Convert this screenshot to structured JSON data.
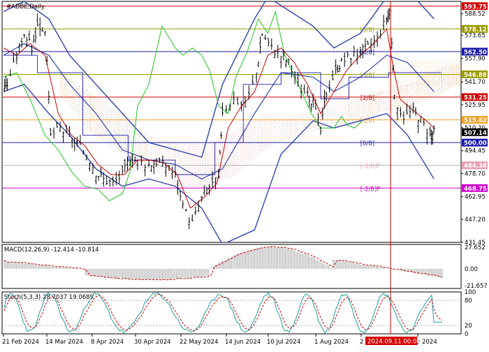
{
  "symbol_title": "#ADBE,Daily",
  "colors": {
    "price_bar": "#000000",
    "bollinger": "#2f45b0",
    "ichimoku_green": "#22c322",
    "ma_red": "#c80000",
    "cloud_brown": "#c89060",
    "cloud_pink": "#e8a0a0",
    "level_red": "#cc0000",
    "level_blue": "#1a1aa8",
    "level_olive": "#9a9a00",
    "level_orange": "#f0a030",
    "level_magenta": "#cc00cc",
    "level_gray": "#b0b0b0",
    "vline_red": "#d40000",
    "macd_hist": "#a8a8a8",
    "macd_signal": "#c80000",
    "stoch_main": "#1f9e9e",
    "stoch_signal": "#c80000"
  },
  "murray_labels": [
    {
      "text": "[5/8]",
      "color": "#9a9a00"
    },
    {
      "text": "[4/8]",
      "color": "#1a1aa8"
    },
    {
      "text": "[3/8]",
      "color": "#9a9a00"
    },
    {
      "text": "[2/8]",
      "color": "#cc0000"
    },
    {
      "text": "[1/8]",
      "color": "#f0a030"
    },
    {
      "text": "[0/8]",
      "color": "#1a1aa8"
    },
    {
      "text": "[-1/8]P",
      "color": "#e8a0b0"
    },
    {
      "text": "[-2/8]P",
      "color": "#cc00cc"
    }
  ],
  "price_tags": [
    {
      "text": "593.75",
      "bg": "#cc0000",
      "fg": "#ffffff"
    },
    {
      "text": "578.12",
      "bg": "#9a9a00",
      "fg": "#ffffff"
    },
    {
      "text": "562.50",
      "bg": "#1a1aa8",
      "fg": "#ffffff"
    },
    {
      "text": "546.88",
      "bg": "#9a9a00",
      "fg": "#ffffff"
    },
    {
      "text": "531.25",
      "bg": "#cc0000",
      "fg": "#ffffff"
    },
    {
      "text": "515.62",
      "bg": "#f0a030",
      "fg": "#ffffff"
    },
    {
      "text": "507.14",
      "bg": "#000000",
      "fg": "#ffffff"
    },
    {
      "text": "500.00",
      "bg": "#1a1aa8",
      "fg": "#ffffff"
    },
    {
      "text": "484.38",
      "bg": "#e8a0b0",
      "fg": "#ffffff"
    },
    {
      "text": "468.75",
      "bg": "#cc00cc",
      "fg": "#ffffff"
    }
  ],
  "crosshair_label": "2024.09.11 00:00",
  "macd_title": "MACD(12,26,9) -12.414 -10.814",
  "stoch_title": "Stoch(5,3,3) 28.7037 19.0689",
  "chart_data": [
    {
      "type": "bar",
      "title": "#ADBE,Daily",
      "y_ticks": [
        "588.52",
        "573.65",
        "557.90",
        "541.70",
        "525.95",
        "510.20",
        "494.45",
        "478.70",
        "462.95",
        "447.20",
        "431.45"
      ],
      "ylim": [
        431.45,
        597.0
      ],
      "x_ticks": [
        "21 Feb 2024",
        "14 Mar 2024",
        "8 Apr 2024",
        "30 Apr 2024",
        "22 May 2024",
        "14 Jun 2024",
        "10 Jul 2024",
        "1 Aug 2024",
        "2",
        "p 2024"
      ],
      "levels": [
        593.75,
        578.12,
        562.5,
        546.88,
        531.25,
        515.62,
        500.0,
        484.38,
        468.75
      ],
      "last_price": 507.14,
      "close_series": [
        {
          "date": "2024-02-21",
          "value": 540
        },
        {
          "date": "2024-02-26",
          "value": 560
        },
        {
          "date": "2024-03-01",
          "value": 575
        },
        {
          "date": "2024-03-05",
          "value": 565
        },
        {
          "date": "2024-03-08",
          "value": 580
        },
        {
          "date": "2024-03-12",
          "value": 578
        },
        {
          "date": "2024-03-15",
          "value": 505
        },
        {
          "date": "2024-03-20",
          "value": 510
        },
        {
          "date": "2024-03-25",
          "value": 503
        },
        {
          "date": "2024-03-29",
          "value": 498
        },
        {
          "date": "2024-04-03",
          "value": 492
        },
        {
          "date": "2024-04-08",
          "value": 480
        },
        {
          "date": "2024-04-12",
          "value": 475
        },
        {
          "date": "2024-04-17",
          "value": 472
        },
        {
          "date": "2024-04-22",
          "value": 478
        },
        {
          "date": "2024-04-26",
          "value": 490
        },
        {
          "date": "2024-04-30",
          "value": 487
        },
        {
          "date": "2024-05-06",
          "value": 485
        },
        {
          "date": "2024-05-10",
          "value": 487
        },
        {
          "date": "2024-05-15",
          "value": 484
        },
        {
          "date": "2024-05-20",
          "value": 478
        },
        {
          "date": "2024-05-24",
          "value": 455
        },
        {
          "date": "2024-05-29",
          "value": 445
        },
        {
          "date": "2024-06-03",
          "value": 462
        },
        {
          "date": "2024-06-07",
          "value": 470
        },
        {
          "date": "2024-06-12",
          "value": 475
        },
        {
          "date": "2024-06-14",
          "value": 522
        },
        {
          "date": "2024-06-20",
          "value": 530
        },
        {
          "date": "2024-06-26",
          "value": 525
        },
        {
          "date": "2024-07-02",
          "value": 548
        },
        {
          "date": "2024-07-05",
          "value": 575
        },
        {
          "date": "2024-07-10",
          "value": 565
        },
        {
          "date": "2024-07-15",
          "value": 560
        },
        {
          "date": "2024-07-19",
          "value": 555
        },
        {
          "date": "2024-07-24",
          "value": 540
        },
        {
          "date": "2024-07-29",
          "value": 532
        },
        {
          "date": "2024-08-01",
          "value": 528
        },
        {
          "date": "2024-08-05",
          "value": 508
        },
        {
          "date": "2024-08-08",
          "value": 535
        },
        {
          "date": "2024-08-13",
          "value": 550
        },
        {
          "date": "2024-08-16",
          "value": 555
        },
        {
          "date": "2024-08-21",
          "value": 560
        },
        {
          "date": "2024-08-26",
          "value": 562
        },
        {
          "date": "2024-08-30",
          "value": 566
        },
        {
          "date": "2024-09-04",
          "value": 572
        },
        {
          "date": "2024-09-09",
          "value": 586
        },
        {
          "date": "2024-09-11",
          "value": 590
        },
        {
          "date": "2024-09-13",
          "value": 530
        },
        {
          "date": "2024-09-18",
          "value": 518
        },
        {
          "date": "2024-09-23",
          "value": 522
        },
        {
          "date": "2024-09-27",
          "value": 516
        },
        {
          "date": "2024-10-02",
          "value": 505
        },
        {
          "date": "2024-10-04",
          "value": 507.14
        }
      ]
    },
    {
      "type": "bar",
      "title": "MACD(12,26,9) -12.414 -10.814",
      "y_ticks": [
        "27.652",
        "0.00",
        "-21.657"
      ],
      "ylim": [
        -25,
        31
      ],
      "macd_last": -12.414,
      "signal_last": -10.814
    },
    {
      "type": "line",
      "title": "Stoch(5,3,3) 28.7037 19.0689",
      "y_ticks": [
        "100",
        "80",
        "20",
        "0"
      ],
      "ylim": [
        0,
        100
      ],
      "main_last": 28.7037,
      "signal_last": 19.0689
    }
  ]
}
